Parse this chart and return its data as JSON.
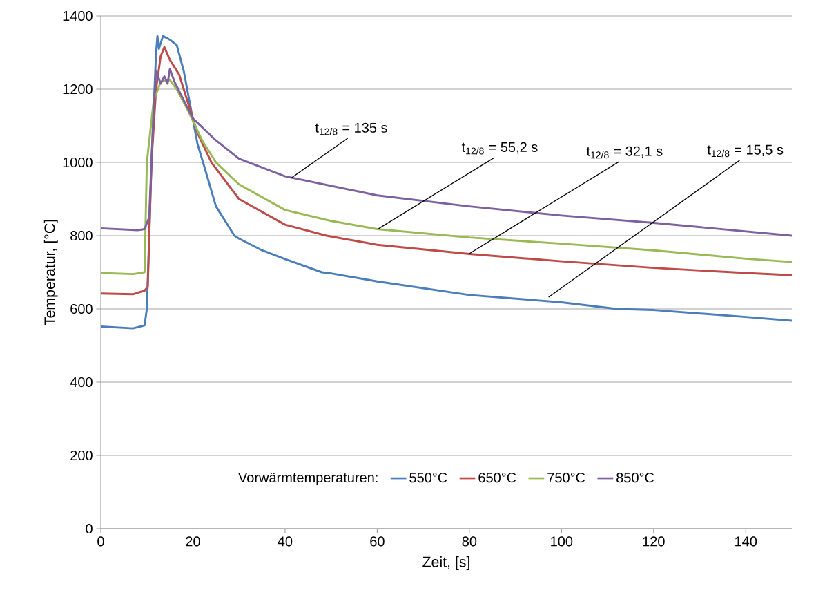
{
  "chart_data": {
    "type": "line",
    "xlabel": "Zeit, [s]",
    "ylabel": "Temperatur, [°C]",
    "legend_title": "Vorwärmtemperaturen:",
    "xlim": [
      0,
      150
    ],
    "ylim": [
      0,
      1400
    ],
    "xticks": [
      0,
      20,
      40,
      60,
      80,
      100,
      120,
      140
    ],
    "yticks": [
      0,
      200,
      400,
      600,
      800,
      1000,
      1200,
      1400
    ],
    "grid": "y",
    "legend": "bottom",
    "marker": "none",
    "line_style": "solid",
    "series": [
      {
        "name": "550°C",
        "color": "#4a7ebb",
        "x": [
          0,
          7,
          9.5,
          10,
          11,
          12,
          12.3,
          12.6,
          13.5,
          15,
          16.5,
          18,
          19.5,
          21,
          22.2,
          25,
          29,
          30,
          35,
          40,
          48,
          50,
          60,
          80,
          100,
          112,
          120,
          140,
          150
        ],
        "values": [
          552,
          547,
          555,
          600,
          1000,
          1300,
          1345,
          1310,
          1345,
          1335,
          1320,
          1250,
          1150,
          1050,
          1000,
          880,
          800,
          792,
          760,
          736,
          700,
          697,
          675,
          638,
          618,
          600,
          597,
          578,
          568
        ]
      },
      {
        "name": "650°C",
        "color": "#be4b48",
        "x": [
          0,
          7,
          9.5,
          10.2,
          11,
          12,
          13,
          13.8,
          15,
          17,
          19,
          21,
          24,
          27,
          30,
          40,
          49,
          60,
          80,
          100,
          120,
          140,
          150
        ],
        "values": [
          642,
          640,
          650,
          660,
          1000,
          1200,
          1290,
          1315,
          1280,
          1240,
          1160,
          1080,
          1000,
          950,
          900,
          830,
          800,
          775,
          750,
          730,
          712,
          698,
          692
        ]
      },
      {
        "name": "750°C",
        "color": "#98b954",
        "x": [
          0,
          7,
          9.5,
          10,
          11.5,
          13,
          15,
          16.5,
          19,
          22,
          25,
          30,
          40,
          50,
          60,
          80,
          100,
          120,
          140,
          150
        ],
        "values": [
          698,
          695,
          700,
          1000,
          1170,
          1220,
          1225,
          1200,
          1140,
          1060,
          1000,
          940,
          870,
          840,
          818,
          795,
          778,
          760,
          737,
          728
        ]
      },
      {
        "name": "850°C",
        "color": "#7d60a0",
        "x": [
          0,
          8,
          9.5,
          10.5,
          11.5,
          12,
          13,
          13.8,
          14.5,
          15,
          16,
          18,
          20,
          25,
          30,
          40,
          60,
          80,
          100,
          120,
          150
        ],
        "values": [
          820,
          815,
          818,
          850,
          1150,
          1250,
          1215,
          1235,
          1215,
          1255,
          1220,
          1170,
          1120,
          1060,
          1010,
          962,
          910,
          880,
          855,
          835,
          800
        ]
      }
    ],
    "annotations": [
      {
        "text": "t$_{12/8}$ = 135 s",
        "x": 41.3,
        "y": 957
      },
      {
        "text": "t$_{12/8}$ = 55,2 s",
        "x": 60.3,
        "y": 819
      },
      {
        "text": "t$_{12/8}$ = 32,1 s",
        "x": 80,
        "y": 751
      },
      {
        "text": "t$_{12/8}$ = 15,5 s",
        "x": 97.2,
        "y": 632
      }
    ]
  }
}
